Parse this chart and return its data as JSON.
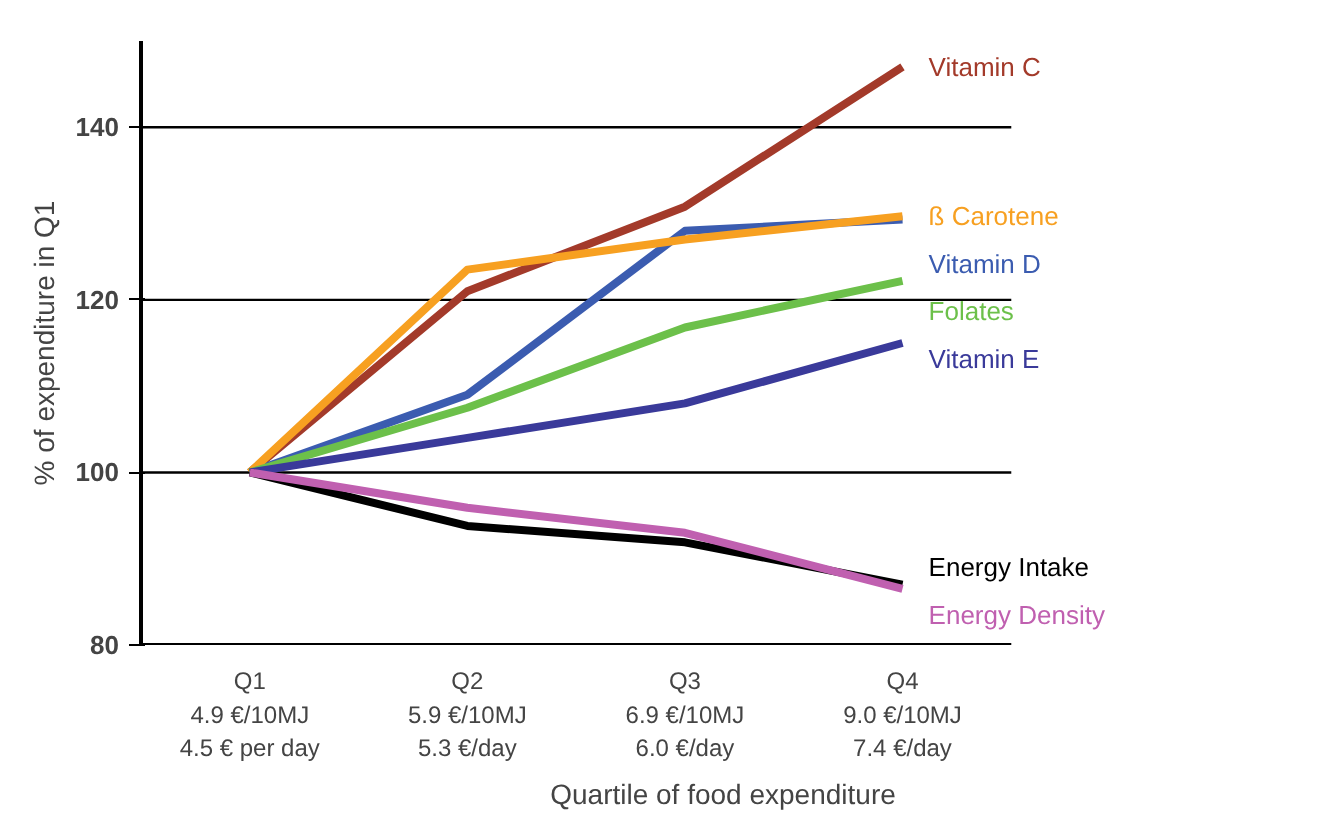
{
  "chart_data": {
    "type": "line",
    "ylabel": "% of expenditure in Q1",
    "xlabel": "Quartile of food expenditure",
    "categories": [
      "Q1\n4.9 €/10MJ\n4.5 € per day",
      "Q2\n5.9 €/10MJ\n5.3 €/day",
      "Q3\n6.9 €/10MJ\n6.0 €/day",
      "Q4\n9.0 €/10MJ\n7.4 €/day"
    ],
    "ylim": [
      80,
      150
    ],
    "yticks": [
      80,
      100,
      120,
      140
    ],
    "grid": "y",
    "marker": "none",
    "line_style": "solid",
    "series": [
      {
        "name": "Vitamin C",
        "color": "#a33a2a",
        "values": [
          100,
          121,
          130.8,
          147
        ]
      },
      {
        "name": "Vitamin D",
        "color": "#3b5cb0",
        "values": [
          100,
          109,
          128,
          129.3
        ]
      },
      {
        "name": "ß Carotene",
        "color": "#f7a021",
        "values": [
          100,
          123.5,
          127,
          129.7
        ]
      },
      {
        "name": "Folates",
        "color": "#6cc04a",
        "values": [
          100,
          107.5,
          116.8,
          122.2
        ]
      },
      {
        "name": "Vitamin E",
        "color": "#3a3a9a",
        "values": [
          100,
          104,
          108,
          115
        ]
      },
      {
        "name": "Energy Intake",
        "color": "#000000",
        "values": [
          100,
          93.8,
          91.9,
          87
        ]
      },
      {
        "name": "Energy Density",
        "color": "#c060b0",
        "values": [
          100,
          95.9,
          93,
          86.5
        ]
      }
    ]
  }
}
